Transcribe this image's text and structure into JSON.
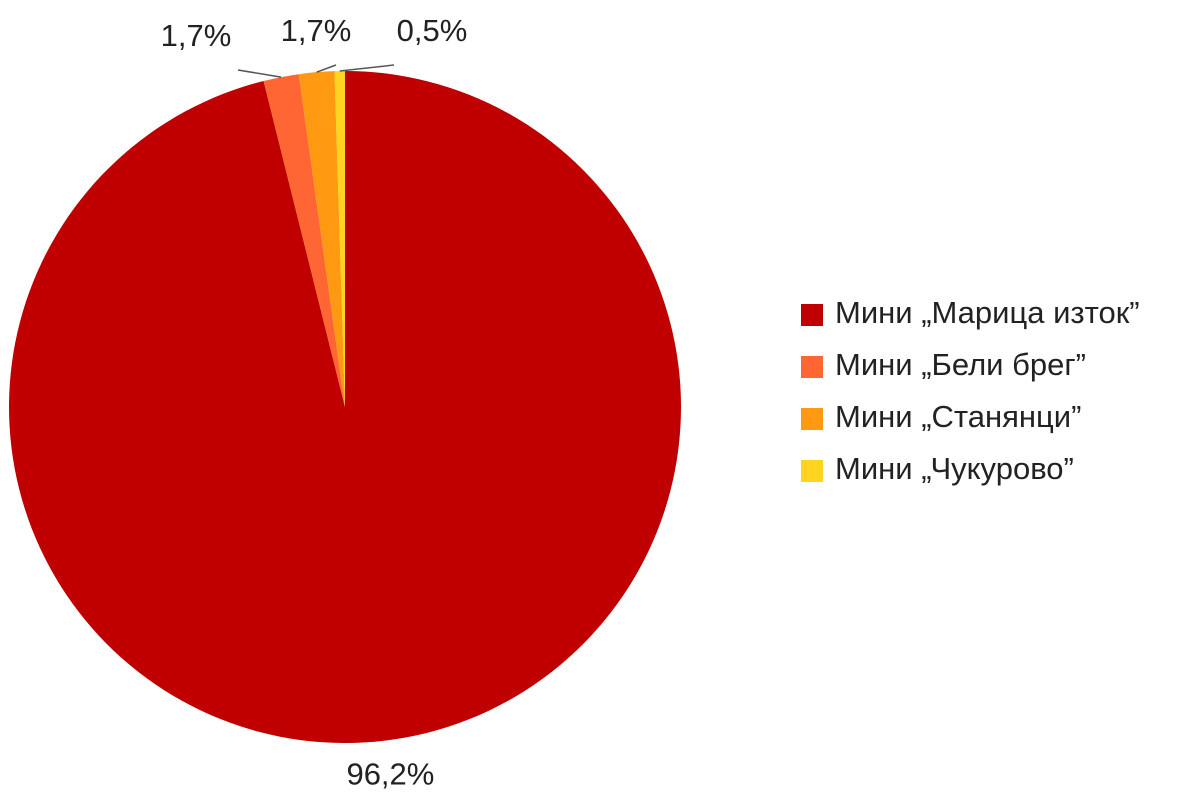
{
  "chart_data": {
    "type": "pie",
    "categories": [
      "Мини „Марица изток”",
      "Мини „Бели брег”",
      "Мини „Станянци”",
      "Мини „Чукурово”"
    ],
    "values": [
      96.2,
      1.7,
      1.7,
      0.5
    ],
    "value_labels": [
      "96,2%",
      "1,7%",
      "1,7%",
      "0,5%"
    ],
    "colors": [
      "#c00000",
      "#ff6633",
      "#ff9912",
      "#ffd320"
    ],
    "legend": "right"
  }
}
